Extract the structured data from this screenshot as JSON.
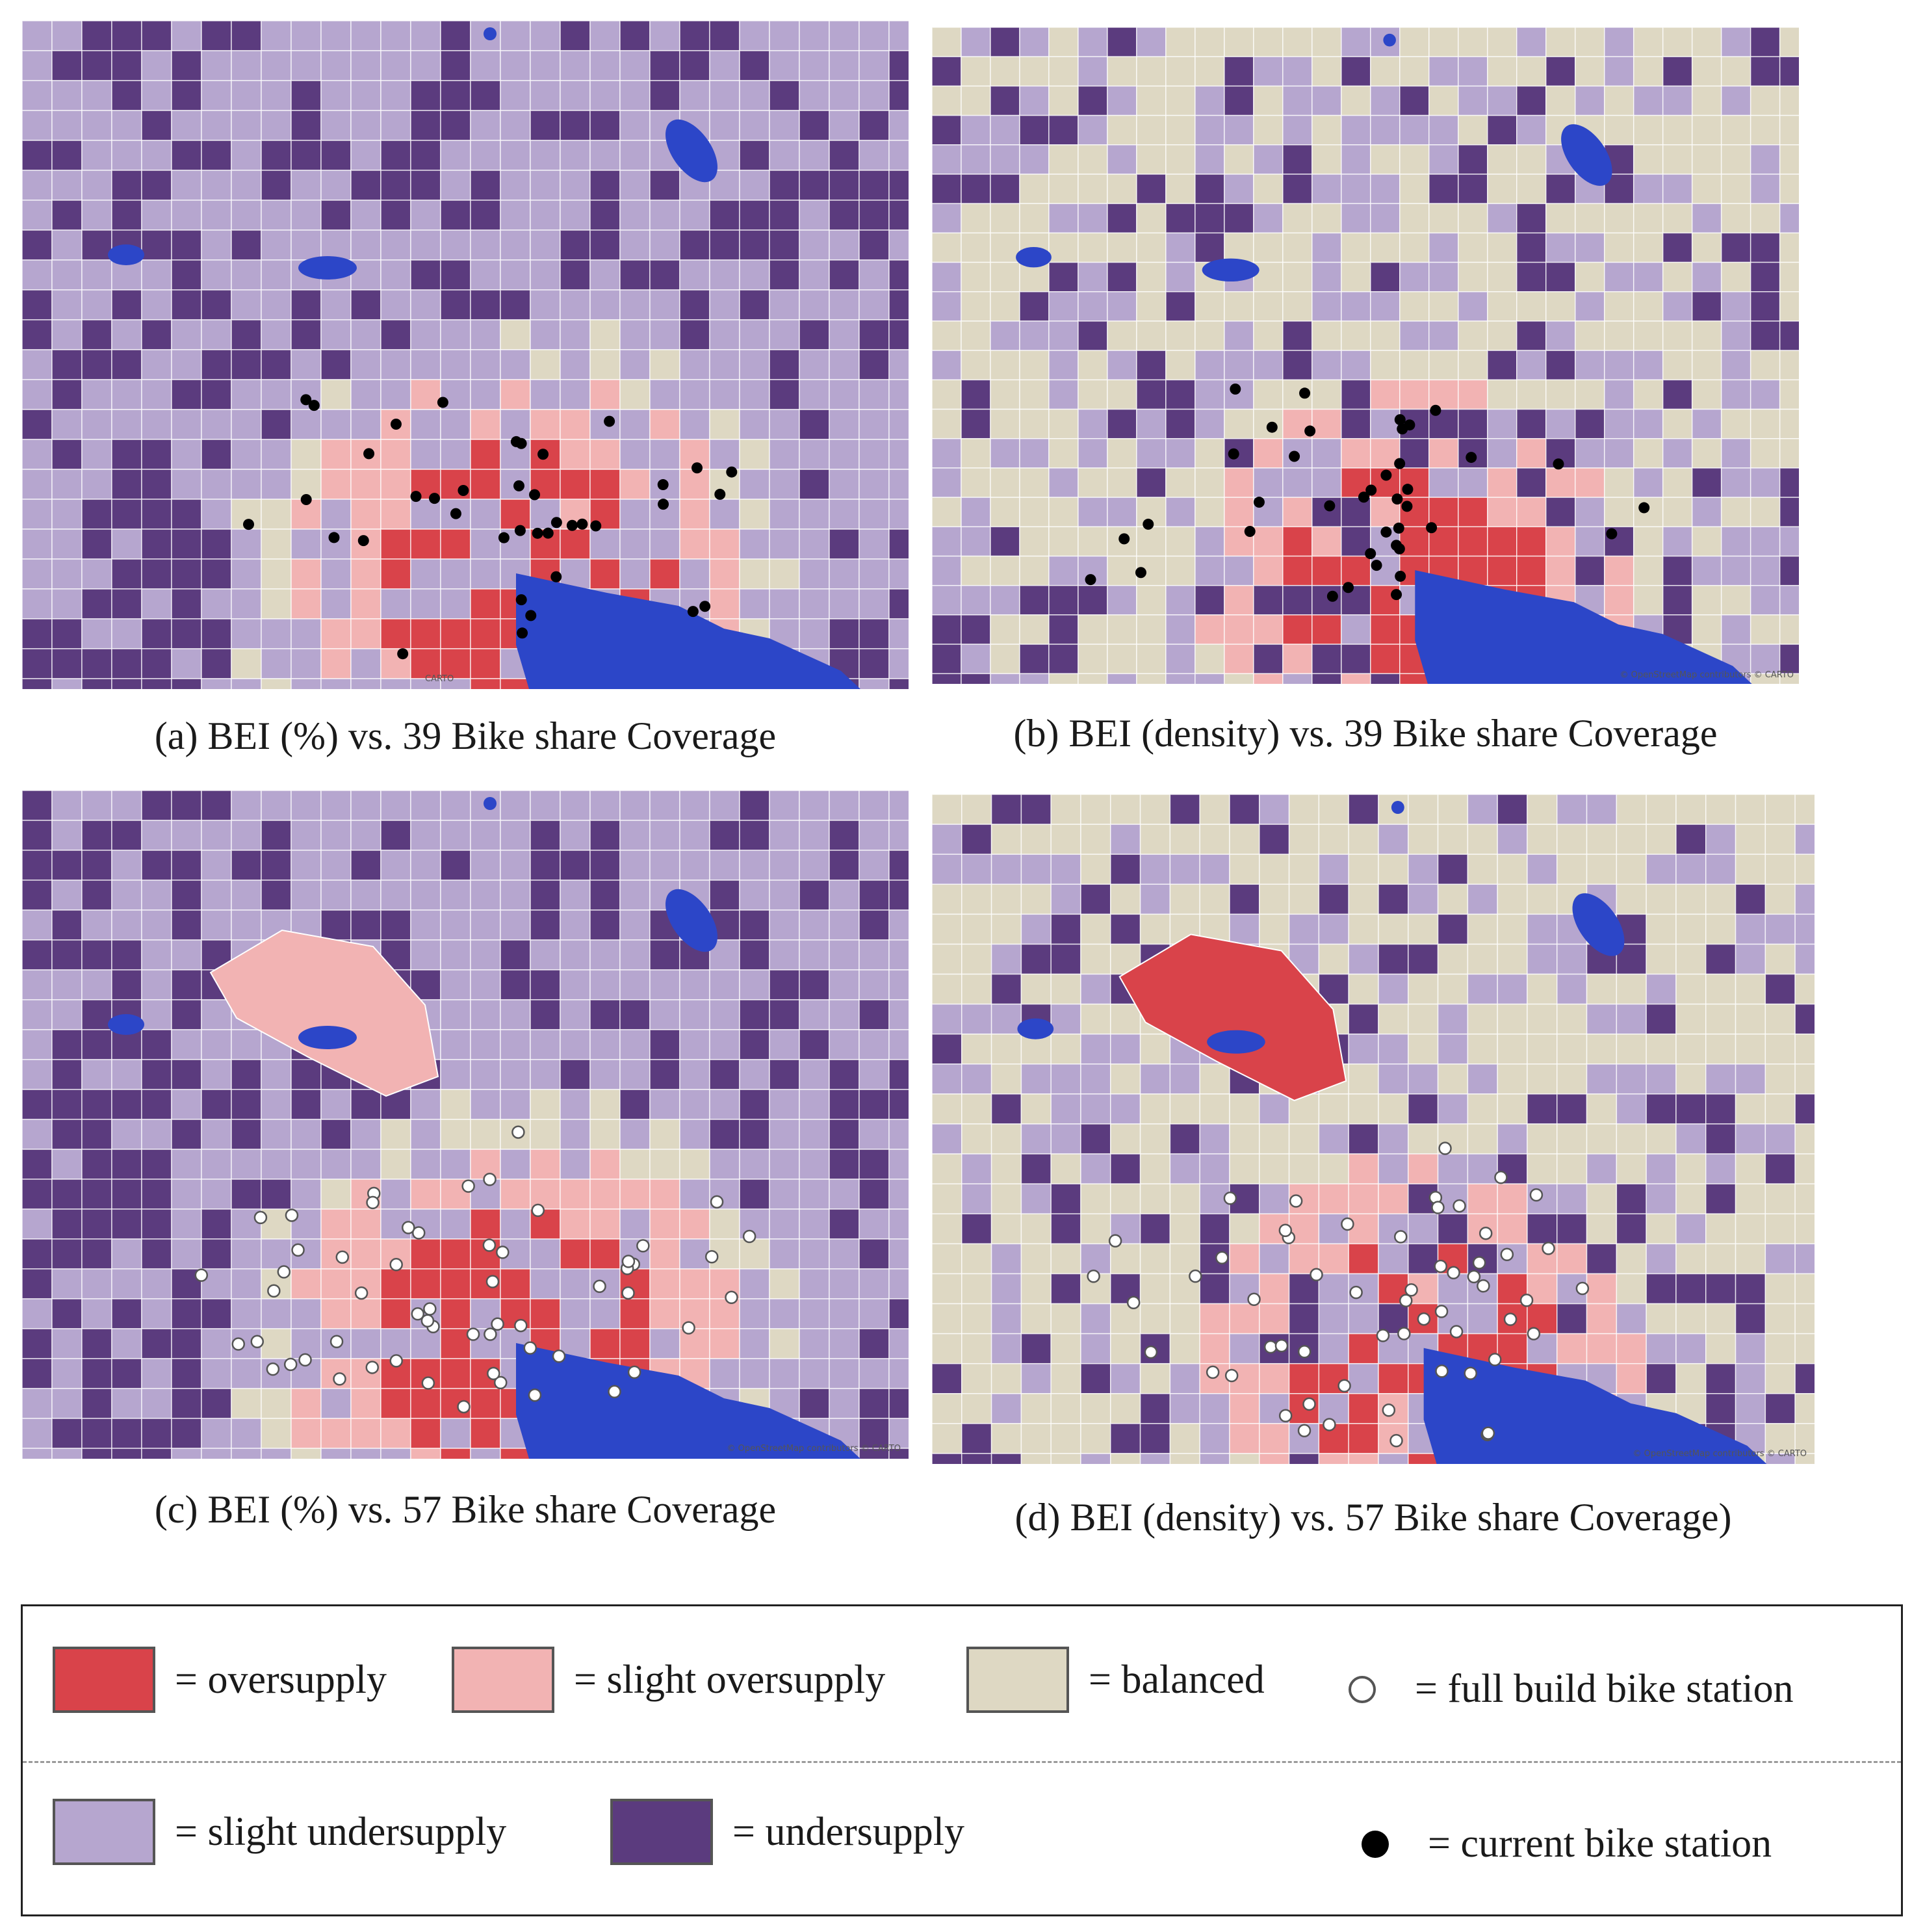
{
  "colors": {
    "oversupply": "#d9434a",
    "slight_oversupply": "#f2b3b3",
    "balanced": "#ded8c3",
    "slight_undersupply": "#b6a6cf",
    "undersupply": "#5b3b7e",
    "water": "#2c46c8",
    "street": "#ffffff"
  },
  "panels": [
    {
      "caption": "(a) BEI (%) vs. 39 Bike share Coverage",
      "station_type": "current",
      "credit": "CARTO"
    },
    {
      "caption": "(b) BEI (density) vs. 39 Bike share Coverage",
      "station_type": "current",
      "credit": "© OpenStreetMap contributors  © CARTO"
    },
    {
      "caption": "(c) BEI (%) vs. 57 Bike share Coverage",
      "station_type": "full",
      "credit": "© OpenStreetMap contributors  © CARTO"
    },
    {
      "caption": "(d) BEI (density) vs. 57 Bike share Coverage)",
      "station_type": "full",
      "credit": "© OpenStreetMap contributors  © CARTO"
    }
  ],
  "legend": {
    "oversupply": "= oversupply",
    "slight_oversupply": "= slight oversupply",
    "balanced": "= balanced",
    "full_station": "= full build bike station",
    "slight_undersupply": "= slight undersupply",
    "undersupply": "= undersupply",
    "current_station": "= current bike station"
  }
}
